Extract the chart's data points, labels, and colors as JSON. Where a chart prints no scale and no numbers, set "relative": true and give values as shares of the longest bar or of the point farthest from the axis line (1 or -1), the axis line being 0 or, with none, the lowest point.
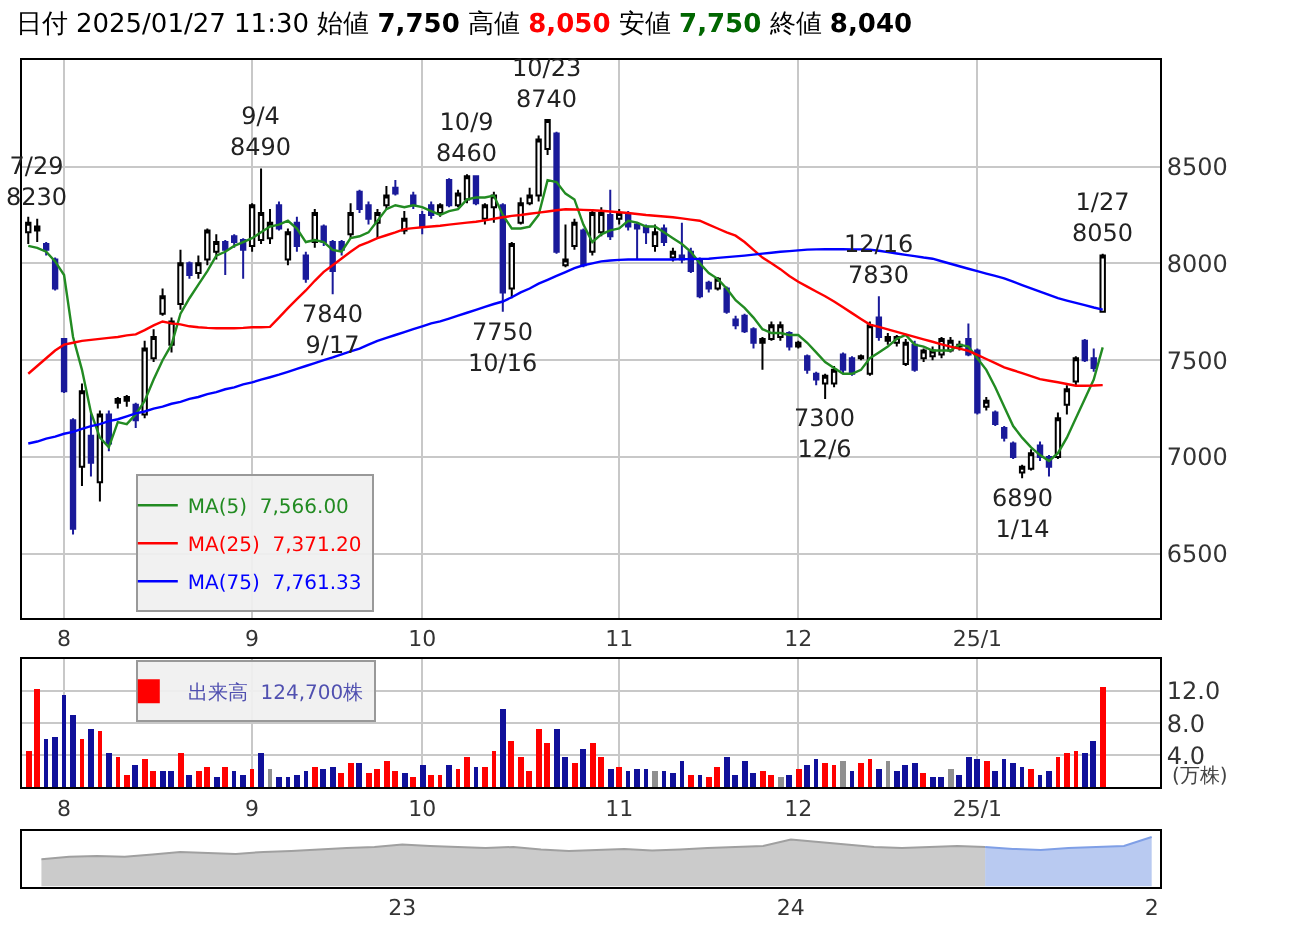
{
  "chart_data": [
    {
      "type": "candlestick",
      "title": "日付 2025/01/27 11:30 始値 7,750 高値 8,050 安値 7,750 終値 8,040",
      "categories": [
        null,
        null,
        null,
        null,
        "8",
        null,
        null,
        null,
        null,
        null,
        null,
        null,
        null,
        null,
        null,
        null,
        null,
        null,
        null,
        null,
        null,
        null,
        null,
        null,
        null,
        "9",
        null,
        null,
        null,
        null,
        null,
        null,
        null,
        null,
        null,
        null,
        null,
        null,
        null,
        null,
        null,
        null,
        null,
        null,
        "10",
        null,
        null,
        null,
        null,
        null,
        null,
        null,
        null,
        null,
        null,
        null,
        null,
        null,
        null,
        null,
        null,
        null,
        null,
        null,
        null,
        null,
        "11",
        null,
        null,
        null,
        null,
        null,
        null,
        null,
        null,
        null,
        null,
        null,
        null,
        null,
        null,
        null,
        null,
        null,
        null,
        null,
        "12",
        null,
        null,
        null,
        null,
        null,
        null,
        null,
        null,
        null,
        null,
        null,
        null,
        null,
        null,
        null,
        null,
        null,
        null,
        null,
        "25/1",
        null,
        null,
        null,
        null,
        null,
        null,
        null,
        null,
        null,
        null,
        null,
        null,
        null,
        null
      ],
      "ohlc": [
        [
          8160,
          8240,
          8100,
          8210
        ],
        [
          8170,
          8230,
          8110,
          8190
        ],
        [
          8100,
          8110,
          8040,
          8070
        ],
        [
          8020,
          8030,
          7860,
          7870
        ],
        [
          7610,
          7610,
          7330,
          7340
        ],
        [
          7190,
          7200,
          6600,
          6630
        ],
        [
          6950,
          7380,
          6850,
          7340
        ],
        [
          7110,
          7230,
          6900,
          6970
        ],
        [
          6870,
          7240,
          6770,
          7220
        ],
        [
          7220,
          7240,
          7030,
          7070
        ],
        [
          7280,
          7310,
          7250,
          7300
        ],
        [
          7290,
          7320,
          7260,
          7310
        ],
        [
          7270,
          7280,
          7150,
          7190
        ],
        [
          7220,
          7600,
          7200,
          7560
        ],
        [
          7510,
          7660,
          7490,
          7620
        ],
        [
          7740,
          7870,
          7730,
          7830
        ],
        [
          7580,
          7720,
          7540,
          7700
        ],
        [
          7790,
          8070,
          7760,
          8000
        ],
        [
          8000,
          8010,
          7920,
          7940
        ],
        [
          7950,
          8040,
          7920,
          8000
        ],
        [
          8020,
          8180,
          7990,
          8170
        ],
        [
          8060,
          8150,
          8020,
          8110
        ],
        [
          8110,
          8120,
          7940,
          8070
        ],
        [
          8140,
          8150,
          8080,
          8110
        ],
        [
          8120,
          8130,
          7920,
          8070
        ],
        [
          8090,
          8310,
          8060,
          8300
        ],
        [
          8120,
          8490,
          8100,
          8260
        ],
        [
          8130,
          8280,
          8100,
          8210
        ],
        [
          8300,
          8320,
          8170,
          8180
        ],
        [
          8020,
          8180,
          7990,
          8160
        ],
        [
          8210,
          8240,
          8060,
          8090
        ],
        [
          8040,
          8060,
          7900,
          7920
        ],
        [
          8110,
          8280,
          8080,
          8260
        ],
        [
          8190,
          8200,
          8090,
          8110
        ],
        [
          8110,
          8120,
          7840,
          7960
        ],
        [
          8110,
          8120,
          8040,
          8070
        ],
        [
          8150,
          8310,
          8130,
          8260
        ],
        [
          8370,
          8380,
          8260,
          8280
        ],
        [
          8300,
          8320,
          8200,
          8230
        ],
        [
          8210,
          8280,
          8130,
          8260
        ],
        [
          8300,
          8400,
          8280,
          8350
        ],
        [
          8390,
          8430,
          8350,
          8360
        ],
        [
          8170,
          8270,
          8150,
          8230
        ],
        [
          8350,
          8370,
          8280,
          8300
        ],
        [
          8250,
          8270,
          8150,
          8190
        ],
        [
          8300,
          8320,
          8230,
          8250
        ],
        [
          8260,
          8310,
          8240,
          8300
        ],
        [
          8430,
          8440,
          8290,
          8300
        ],
        [
          8300,
          8380,
          8290,
          8360
        ],
        [
          8330,
          8460,
          8310,
          8450
        ],
        [
          8450,
          8450,
          8300,
          8310
        ],
        [
          8230,
          8310,
          8200,
          8300
        ],
        [
          8290,
          8370,
          8210,
          8350
        ],
        [
          8300,
          8310,
          7750,
          7850
        ],
        [
          7870,
          8110,
          7820,
          8100
        ],
        [
          8210,
          8340,
          8200,
          8310
        ],
        [
          8310,
          8390,
          8300,
          8350
        ],
        [
          8350,
          8660,
          8320,
          8640
        ],
        [
          8590,
          8740,
          8560,
          8740
        ],
        [
          8670,
          8680,
          8050,
          8060
        ],
        [
          7990,
          8200,
          7980,
          8020
        ],
        [
          8090,
          8230,
          8070,
          8210
        ],
        [
          8170,
          8180,
          7980,
          7990
        ],
        [
          8060,
          8280,
          8040,
          8260
        ],
        [
          8160,
          8290,
          8140,
          8260
        ],
        [
          8250,
          8380,
          8120,
          8140
        ],
        [
          8230,
          8280,
          8200,
          8260
        ],
        [
          8250,
          8270,
          8170,
          8190
        ],
        [
          8200,
          8210,
          8020,
          8180
        ],
        [
          8190,
          8200,
          8100,
          8160
        ],
        [
          8090,
          8200,
          8060,
          8160
        ],
        [
          8180,
          8200,
          8090,
          8110
        ],
        [
          8030,
          8080,
          8010,
          8060
        ],
        [
          8040,
          8210,
          8000,
          8020
        ],
        [
          8060,
          8080,
          7950,
          7960
        ],
        [
          8020,
          8030,
          7820,
          7830
        ],
        [
          7900,
          7910,
          7850,
          7870
        ],
        [
          7870,
          7930,
          7860,
          7920
        ],
        [
          7870,
          7880,
          7740,
          7750
        ],
        [
          7710,
          7730,
          7660,
          7680
        ],
        [
          7730,
          7740,
          7640,
          7650
        ],
        [
          7660,
          7670,
          7560,
          7590
        ],
        [
          7590,
          7620,
          7450,
          7610
        ],
        [
          7610,
          7700,
          7600,
          7680
        ],
        [
          7620,
          7700,
          7600,
          7680
        ],
        [
          7640,
          7650,
          7550,
          7570
        ],
        [
          7570,
          7600,
          7560,
          7590
        ],
        [
          7520,
          7530,
          7430,
          7450
        ],
        [
          7430,
          7440,
          7370,
          7400
        ],
        [
          7380,
          7430,
          7300,
          7420
        ],
        [
          7380,
          7470,
          7360,
          7450
        ],
        [
          7530,
          7540,
          7430,
          7450
        ],
        [
          7510,
          7520,
          7420,
          7430
        ],
        [
          7510,
          7530,
          7500,
          7520
        ],
        [
          7430,
          7700,
          7420,
          7680
        ],
        [
          7720,
          7830,
          7600,
          7620
        ],
        [
          7600,
          7640,
          7580,
          7620
        ],
        [
          7590,
          7630,
          7570,
          7620
        ],
        [
          7480,
          7610,
          7470,
          7590
        ],
        [
          7580,
          7600,
          7440,
          7450
        ],
        [
          7510,
          7560,
          7490,
          7550
        ],
        [
          7520,
          7570,
          7500,
          7550
        ],
        [
          7530,
          7620,
          7510,
          7610
        ],
        [
          7550,
          7620,
          7540,
          7600
        ],
        [
          7570,
          7600,
          7550,
          7580
        ],
        [
          7610,
          7690,
          7520,
          7530
        ],
        [
          7550,
          7560,
          7220,
          7230
        ],
        [
          7260,
          7310,
          7240,
          7290
        ],
        [
          7230,
          7240,
          7160,
          7170
        ],
        [
          7150,
          7160,
          7080,
          7100
        ],
        [
          7070,
          7080,
          6990,
          7000
        ],
        [
          6920,
          6960,
          6890,
          6950
        ],
        [
          6940,
          7040,
          6930,
          7020
        ],
        [
          7060,
          7080,
          6980,
          7000
        ],
        [
          7000,
          7010,
          6900,
          6950
        ],
        [
          7000,
          7230,
          6990,
          7200
        ],
        [
          7270,
          7370,
          7220,
          7350
        ],
        [
          7390,
          7520,
          7370,
          7510
        ],
        [
          7600,
          7610,
          7490,
          7500
        ],
        [
          7510,
          7560,
          7440,
          7460
        ],
        [
          7750,
          8050,
          7750,
          8040
        ]
      ],
      "series": [
        {
          "name": "MA(5)  7,566.00",
          "type": "line",
          "color": "#228b22",
          "values": [
            8090,
            8080,
            8060,
            8010,
            7940,
            7620,
            7450,
            7230,
            7100,
            7050,
            7180,
            7170,
            7220,
            7290,
            7400,
            7500,
            7580,
            7740,
            7820,
            7890,
            7960,
            8040,
            8060,
            8090,
            8110,
            8130,
            8160,
            8190,
            8200,
            8220,
            8180,
            8110,
            8120,
            8110,
            8070,
            8060,
            8130,
            8140,
            8160,
            8220,
            8280,
            8300,
            8290,
            8300,
            8290,
            8270,
            8250,
            8270,
            8280,
            8330,
            8340,
            8340,
            8350,
            8250,
            8180,
            8180,
            8190,
            8250,
            8430,
            8420,
            8360,
            8330,
            8200,
            8110,
            8150,
            8170,
            8180,
            8220,
            8210,
            8190,
            8190,
            8160,
            8130,
            8100,
            8060,
            8000,
            7950,
            7920,
            7870,
            7810,
            7770,
            7720,
            7660,
            7640,
            7640,
            7630,
            7630,
            7590,
            7540,
            7490,
            7460,
            7430,
            7430,
            7450,
            7510,
            7540,
            7570,
            7610,
            7630,
            7580,
            7570,
            7550,
            7550,
            7550,
            7580,
            7570,
            7510,
            7450,
            7360,
            7260,
            7160,
            7100,
            7050,
            7010,
            6980,
            7020,
            7100,
            7200,
            7300,
            7400,
            7566.0
          ]
        },
        {
          "name": "MA(25)  7,371.20",
          "type": "line",
          "color": "#ff0000",
          "values": [
            7430,
            7470,
            7510,
            7550,
            7580,
            7590,
            7600,
            7605,
            7610,
            7615,
            7620,
            7628,
            7633,
            7655,
            7680,
            7700,
            7690,
            7685,
            7675,
            7670,
            7667,
            7665,
            7665,
            7665,
            7667,
            7670,
            7670,
            7672,
            7720,
            7769,
            7815,
            7860,
            7910,
            7956,
            7990,
            8025,
            8060,
            8092,
            8110,
            8130,
            8145,
            8160,
            8177,
            8182,
            8186,
            8190,
            8194,
            8200,
            8205,
            8210,
            8215,
            8222,
            8230,
            8238,
            8245,
            8250,
            8256,
            8262,
            8268,
            8274,
            8279,
            8278,
            8276,
            8274,
            8272,
            8268,
            8264,
            8260,
            8255,
            8250,
            8246,
            8242,
            8238,
            8232,
            8226,
            8220,
            8200,
            8180,
            8160,
            8143,
            8110,
            8070,
            8030,
            8000,
            7970,
            7935,
            7905,
            7880,
            7855,
            7830,
            7803,
            7773,
            7743,
            7713,
            7684,
            7672,
            7659,
            7646,
            7633,
            7620,
            7607,
            7595,
            7582,
            7570,
            7560,
            7548,
            7527,
            7506,
            7485,
            7463,
            7448,
            7433,
            7418,
            7402,
            7394,
            7386,
            7377,
            7368,
            7368,
            7369,
            7371.2
          ]
        },
        {
          "name": "MA(75)  7,761.33",
          "type": "line",
          "color": "#0000ff",
          "values": [
            7070,
            7080,
            7095,
            7105,
            7120,
            7130,
            7145,
            7160,
            7170,
            7185,
            7195,
            7210,
            7225,
            7235,
            7250,
            7260,
            7275,
            7285,
            7300,
            7310,
            7325,
            7335,
            7350,
            7360,
            7375,
            7385,
            7400,
            7412,
            7425,
            7440,
            7455,
            7470,
            7485,
            7500,
            7514,
            7530,
            7545,
            7560,
            7580,
            7600,
            7615,
            7630,
            7645,
            7660,
            7675,
            7690,
            7700,
            7715,
            7730,
            7745,
            7760,
            7775,
            7790,
            7803,
            7825,
            7850,
            7870,
            7895,
            7915,
            7935,
            7955,
            7975,
            7990,
            8000,
            8010,
            8015,
            8018,
            8020,
            8020,
            8020,
            8020,
            8020,
            8020,
            8022,
            8022,
            8023,
            8024,
            8028,
            8032,
            8036,
            8040,
            8045,
            8050,
            8055,
            8060,
            8063,
            8067,
            8071,
            8072,
            8073,
            8073,
            8073,
            8072,
            8072,
            8071,
            8065,
            8058,
            8051,
            8044,
            8037,
            8030,
            8024,
            8011,
            7998,
            7985,
            7972,
            7960,
            7947,
            7935,
            7922,
            7905,
            7888,
            7871,
            7854,
            7837,
            7820,
            7808,
            7796,
            7784,
            7772,
            7761.33
          ]
        }
      ],
      "annotations": [
        {
          "text": "7/29\n8230",
          "y": 8230
        },
        {
          "text": "9/4\n8490",
          "y": 8490
        },
        {
          "text": "7840\n9/17",
          "y": 7840
        },
        {
          "text": "10/9\n8460",
          "y": 8460
        },
        {
          "text": "7750\n10/16",
          "y": 7750
        },
        {
          "text": "10/23\n8740",
          "y": 8740
        },
        {
          "text": "12/16\n7830",
          "y": 7830
        },
        {
          "text": "7300\n12/6",
          "y": 7300
        },
        {
          "text": "6890\n1/14",
          "y": 6890
        },
        {
          "text": "1/27\n8050",
          "y": 8050
        }
      ],
      "ylim": [
        6170,
        9050
      ],
      "yticks": [
        6500,
        7000,
        7500,
        8000,
        8500
      ],
      "grid": true,
      "legend": "bottom left"
    },
    {
      "type": "bar",
      "categories": [
        null,
        null,
        null,
        null,
        "8",
        null,
        null,
        null,
        null,
        null,
        null,
        null,
        null,
        null,
        null,
        null,
        null,
        null,
        null,
        null,
        null,
        null,
        null,
        null,
        null,
        "9",
        null,
        null,
        null,
        null,
        null,
        null,
        null,
        null,
        null,
        null,
        null,
        null,
        null,
        null,
        null,
        null,
        null,
        null,
        "10",
        null,
        null,
        null,
        null,
        null,
        null,
        null,
        null,
        null,
        null,
        null,
        null,
        null,
        null,
        null,
        null,
        null,
        null,
        null,
        null,
        null,
        "11",
        null,
        null,
        null,
        null,
        null,
        null,
        null,
        null,
        null,
        null,
        null,
        null,
        null,
        null,
        null,
        null,
        null,
        null,
        null,
        "12",
        null,
        null,
        null,
        null,
        null,
        null,
        null,
        null,
        null,
        null,
        null,
        null,
        null,
        null,
        null,
        null,
        null,
        null,
        null,
        "25/1",
        null,
        null,
        null,
        null,
        null,
        null,
        null,
        null,
        null,
        null,
        null,
        null,
        null,
        null
      ],
      "series": [
        {
          "name": "出来高  124,700株",
          "values": [
            4.6,
            12.2,
            6.0,
            6.2,
            11.5,
            9.1,
            6.0,
            7.4,
            7.0,
            4.4,
            3.7,
            1.6,
            2.8,
            3.5,
            2.1,
            2.1,
            2.1,
            4.2,
            1.6,
            2.1,
            2.5,
            1.2,
            2.5,
            2.1,
            1.6,
            2.4,
            4.2,
            2.3,
            1.4,
            1.4,
            1.6,
            2.1,
            2.5,
            2.4,
            2.6,
            1.8,
            3.0,
            3.0,
            1.8,
            2.3,
            3.2,
            2.1,
            1.8,
            1.4,
            2.8,
            1.6,
            1.6,
            2.8,
            2.3,
            3.9,
            2.5,
            2.5,
            4.6,
            9.9,
            5.8,
            3.7,
            2.1,
            7.2,
            5.5,
            7.4,
            3.9,
            3.0,
            4.8,
            5.5,
            3.9,
            2.3,
            2.5,
            2.1,
            2.3,
            2.3,
            2.1,
            2.1,
            1.8,
            3.2,
            1.6,
            1.6,
            1.4,
            2.5,
            3.9,
            1.6,
            3.4,
            1.8,
            2.1,
            1.6,
            1.2,
            1.6,
            2.3,
            2.8,
            3.5,
            3.0,
            2.8,
            3.2,
            2.1,
            3.0,
            3.5,
            2.3,
            3.2,
            2.1,
            2.8,
            3.0,
            1.8,
            1.2,
            1.2,
            2.3,
            1.6,
            3.9,
            3.5,
            3.2,
            2.1,
            3.5,
            3.0,
            2.5,
            2.3,
            1.6,
            2.1,
            3.7,
            4.4,
            4.6,
            4.4,
            5.8,
            12.47
          ],
          "colors": [
            "#ff0000",
            "#ff0000",
            "#10109a",
            "#10109a",
            "#10109a",
            "#10109a",
            "#ff0000",
            "#10109a",
            "#ff0000",
            "#10109a",
            "#ff0000",
            "#ff0000",
            "#10109a",
            "#ff0000",
            "#ff0000",
            "#10109a",
            "#10109a",
            "#ff0000",
            "#10109a",
            "#ff0000",
            "#ff0000",
            "#10109a",
            "#ff0000",
            "#10109a",
            "#10109a",
            "#ff0000",
            "#10109a",
            "#909090",
            "#10109a",
            "#10109a",
            "#10109a",
            "#10109a",
            "#ff0000",
            "#10109a",
            "#10109a",
            "#ff0000",
            "#ff0000",
            "#10109a",
            "#ff0000",
            "#ff0000",
            "#ff0000",
            "#ff0000",
            "#10109a",
            "#ff0000",
            "#10109a",
            "#ff0000",
            "#ff0000",
            "#10109a",
            "#ff0000",
            "#ff0000",
            "#10109a",
            "#ff0000",
            "#ff0000",
            "#10109a",
            "#ff0000",
            "#ff0000",
            "#ff0000",
            "#ff0000",
            "#ff0000",
            "#10109a",
            "#10109a",
            "#ff0000",
            "#10109a",
            "#ff0000",
            "#ff0000",
            "#10109a",
            "#ff0000",
            "#10109a",
            "#10109a",
            "#10109a",
            "#909090",
            "#10109a",
            "#10109a",
            "#10109a",
            "#ff0000",
            "#10109a",
            "#ff0000",
            "#ff0000",
            "#10109a",
            "#10109a",
            "#10109a",
            "#10109a",
            "#ff0000",
            "#ff0000",
            "#909090",
            "#10109a",
            "#ff0000",
            "#10109a",
            "#10109a",
            "#ff0000",
            "#ff0000",
            "#909090",
            "#10109a",
            "#ff0000",
            "#ff0000",
            "#10109a",
            "#909090",
            "#10109a",
            "#10109a",
            "#10109a",
            "#ff0000",
            "#10109a",
            "#10109a",
            "#909090",
            "#10109a",
            "#10109a",
            "#10109a",
            "#ff0000",
            "#10109a",
            "#10109a",
            "#10109a",
            "#10109a",
            "#ff0000",
            "#10109a",
            "#10109a",
            "#ff0000",
            "#ff0000",
            "#ff0000",
            "#10109a",
            "#10109a",
            "#ff0000"
          ]
        }
      ],
      "ylabel": "(万株)",
      "ylim": [
        0,
        16
      ],
      "yticks": [
        {
          "value": 4,
          "label": "4.0"
        },
        {
          "value": 8,
          "label": "8.0"
        },
        {
          "value": 12,
          "label": "12.0"
        }
      ],
      "grid": true,
      "legend": "top left"
    },
    {
      "type": "area",
      "relative": true,
      "categories": [
        null,
        null,
        null,
        null,
        null,
        null,
        null,
        null,
        null,
        null,
        null,
        null,
        null,
        "23",
        null,
        null,
        null,
        null,
        null,
        null,
        null,
        null,
        null,
        null,
        null,
        null,
        null,
        "24",
        null,
        null,
        null,
        null,
        null,
        null,
        null,
        null,
        null,
        null,
        null,
        null,
        "2"
      ],
      "series": [
        {
          "color": "#a0a0a0",
          "values": [
            0.55,
            0.6,
            0.62,
            0.6,
            0.65,
            0.7,
            0.68,
            0.66,
            0.7,
            0.72,
            0.75,
            0.78,
            0.8,
            0.85,
            0.82,
            0.8,
            0.78,
            0.8,
            0.75,
            0.72,
            0.74,
            0.76,
            0.73,
            0.75,
            0.78,
            0.8,
            0.82,
            0.95,
            0.9,
            0.85,
            0.8,
            0.78,
            0.8,
            0.82,
            0.8,
            null,
            null,
            null,
            null,
            null,
            null
          ]
        },
        {
          "color": "#7f9fe6",
          "values": [
            null,
            null,
            null,
            null,
            null,
            null,
            null,
            null,
            null,
            null,
            null,
            null,
            null,
            null,
            null,
            null,
            null,
            null,
            null,
            null,
            null,
            null,
            null,
            null,
            null,
            null,
            null,
            null,
            null,
            null,
            null,
            null,
            null,
            null,
            0.8,
            0.76,
            0.74,
            0.78,
            0.8,
            0.82,
            1.0
          ]
        }
      ]
    }
  ]
}
